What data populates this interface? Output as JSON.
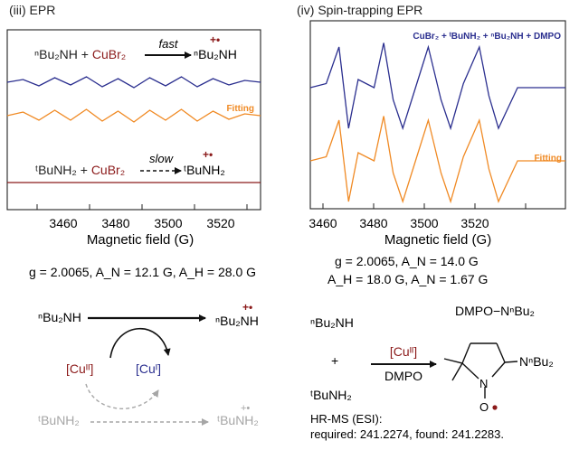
{
  "panels": {
    "iii": {
      "title": "(iii) EPR"
    },
    "iv": {
      "title": "(iv) Spin-trapping EPR"
    }
  },
  "colors": {
    "navy": "#2b2f8f",
    "orange": "#f08a24",
    "maroon": "#8b1a1a",
    "gray": "#a6a6a6",
    "ink": "#222222"
  },
  "chart_data": [
    {
      "type": "line",
      "panel": "iii",
      "title": "(iii) EPR",
      "xlabel": "Magnetic field (G)",
      "ylabel": "",
      "xlim": [
        3450,
        3530
      ],
      "xticks": [
        3460,
        3480,
        3500,
        3520
      ],
      "grid": false,
      "series": [
        {
          "name": "",
          "color": "#2b2f8f",
          "x": [
            3450,
            3455,
            3460,
            3465,
            3470,
            3475,
            3480,
            3485,
            3490,
            3495,
            3500,
            3505,
            3510,
            3515,
            3520,
            3525,
            3530
          ],
          "values": [
            0,
            0.3,
            -0.4,
            0.5,
            -0.3,
            0.6,
            -0.5,
            0.4,
            -0.6,
            0.5,
            -0.4,
            0.6,
            -0.5,
            0.4,
            -0.3,
            0.2,
            0
          ]
        },
        {
          "name": "Fitting",
          "color": "#f08a24",
          "x": [
            3450,
            3455,
            3460,
            3465,
            3470,
            3475,
            3480,
            3485,
            3490,
            3495,
            3500,
            3505,
            3510,
            3515,
            3520,
            3525,
            3530
          ],
          "values": [
            0,
            0.4,
            -0.5,
            0.6,
            -0.5,
            0.7,
            -0.6,
            0.5,
            -0.7,
            0.6,
            -0.5,
            0.7,
            -0.6,
            0.5,
            -0.4,
            0.2,
            0
          ]
        },
        {
          "name": "",
          "color": "#8b1a1a",
          "x": [
            3450,
            3530
          ],
          "values": [
            0,
            0
          ]
        }
      ],
      "annotations": {
        "fitting": "Fitting",
        "r1_left": "ⁿBu₂NH + ",
        "r1_reagent": "CuBr₂",
        "r1_arrow": "fast",
        "r1_product": "ⁿBu₂NH",
        "r1_charge": "+•",
        "r2_left": "ᵗBuNH₂ + ",
        "r2_reagent": "CuBr₂",
        "r2_arrow": "slow",
        "r2_product": "ᵗBuNH₂",
        "r2_charge": "+•"
      }
    },
    {
      "type": "line",
      "panel": "iv",
      "title": "(iv) Spin-trapping EPR",
      "xlabel": "Magnetic field (G)",
      "ylabel": "",
      "xlim": [
        3455,
        3535
      ],
      "xticks": [
        3460,
        3480,
        3500,
        3520
      ],
      "grid": false,
      "series": [
        {
          "name": "CuBr₂ + ᵗBuNH₂ + ⁿBu₂NH + DMPO",
          "color": "#2b2f8f",
          "x": [
            3455,
            3460,
            3464,
            3467,
            3470,
            3475,
            3478,
            3481,
            3484,
            3488,
            3492,
            3496,
            3499,
            3503,
            3508,
            3511,
            3514,
            3520,
            3535
          ],
          "values": [
            0,
            0.1,
            1,
            -1,
            0.2,
            0,
            1.1,
            -0.3,
            -1,
            0,
            1,
            -0.3,
            -1,
            0.1,
            1,
            -0.2,
            -1,
            0,
            0
          ]
        },
        {
          "name": "Fitting",
          "color": "#f08a24",
          "x": [
            3455,
            3460,
            3464,
            3467,
            3470,
            3475,
            3478,
            3481,
            3484,
            3488,
            3492,
            3496,
            3499,
            3503,
            3508,
            3511,
            3514,
            3520,
            3535
          ],
          "values": [
            0,
            0.1,
            1,
            -1,
            0.2,
            0,
            1.1,
            -0.3,
            -1,
            0,
            1,
            -0.3,
            -1,
            0.1,
            1,
            -0.2,
            -1,
            0,
            0
          ]
        }
      ]
    }
  ],
  "params_iii": "g = 2.0065, A_N = 12.1 G, A_H = 28.0 G",
  "params_iv": {
    "line1": "g = 2.0065, A_N = 14.0 G",
    "line2": "A_H = 18.0 G, A_N = 1.67 G"
  },
  "scheme_left": {
    "start": "ⁿBu₂NH",
    "end": "ⁿBu₂NH",
    "end_charge": "+•",
    "cu2": "[Cuᴵᴵ]",
    "cu1": "[Cuᴵ]",
    "gray_start": "ᵗBuNH₂",
    "gray_end": "ᵗBuNH₂",
    "gray_charge": "+•"
  },
  "scheme_right": {
    "reactant1": "ⁿBu₂NH",
    "plus": "+",
    "reactant2": "ᵗBuNH₂",
    "reagent_above": "[Cuᴵᴵ]",
    "reagent_below": "DMPO",
    "adduct_label": "DMPO−NⁿBu₂",
    "sub_label": "NⁿBu₂",
    "n_label": "N",
    "o_label": "O",
    "hrms_title": "HR-MS (ESI):",
    "hrms_values": "required: 241.2274, found: 241.2283."
  }
}
